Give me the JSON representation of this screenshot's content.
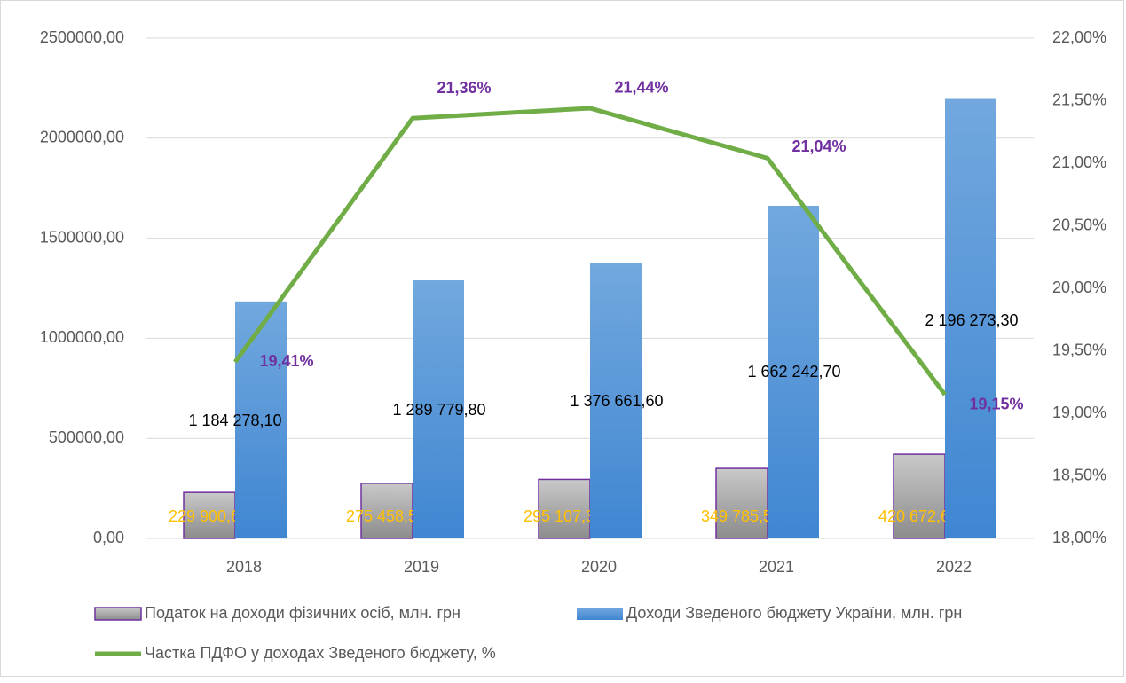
{
  "chart_data": {
    "type": "bar",
    "categories": [
      "2018",
      "2019",
      "2020",
      "2021",
      "2022"
    ],
    "series": [
      {
        "name": "Податок на доходи фізичних осіб, млн. грн",
        "color": "#a6a6a6",
        "border": "#7030a0",
        "values": [
          229900.6,
          275458.5,
          295107.3,
          349785.5,
          420672.6
        ],
        "value_labels": [
          "229 900,60",
          "275 458,50",
          "295 107,30",
          "349 785,50",
          "420 672,60"
        ],
        "label_color": "#ffc000"
      },
      {
        "name": "Доходи Зведеного бюджету України, млн. грн",
        "color": "#4a90d9",
        "values": [
          1184278.1,
          1289779.8,
          1376661.6,
          1662242.7,
          2196273.3
        ],
        "value_labels": [
          "1 184 278,10",
          "1 289 779,80",
          "1 376 661,60",
          "1 662 242,70",
          "2 196 273,30"
        ],
        "label_color": "#000000"
      },
      {
        "name": "Частка ПДФО у доходах Зведеного бюджету, %",
        "type": "line",
        "axis": "y2",
        "color": "#70ad47",
        "values": [
          19.41,
          21.36,
          21.44,
          21.04,
          19.15
        ],
        "value_labels": [
          "19,41%",
          "21,36%",
          "21,44%",
          "21,04%",
          "19,15%"
        ],
        "label_color": "#7030a0"
      }
    ],
    "ylim": [
      0,
      2500000
    ],
    "yticks": [
      {
        "value": 0,
        "label": "0,00"
      },
      {
        "value": 500000,
        "label": "500000,00"
      },
      {
        "value": 1000000,
        "label": "1000000,00"
      },
      {
        "value": 1500000,
        "label": "1500000,00"
      },
      {
        "value": 2000000,
        "label": "2000000,00"
      },
      {
        "value": 2500000,
        "label": "2500000,00"
      }
    ],
    "y2lim": [
      18,
      22
    ],
    "y2ticks": [
      {
        "value": 18,
        "label": "18,00%"
      },
      {
        "value": 18.5,
        "label": "18,50%"
      },
      {
        "value": 19,
        "label": "19,00%"
      },
      {
        "value": 19.5,
        "label": "19,50%"
      },
      {
        "value": 20,
        "label": "20,00%"
      },
      {
        "value": 20.5,
        "label": "20,50%"
      },
      {
        "value": 21,
        "label": "21,00%"
      },
      {
        "value": 21.5,
        "label": "21,50%"
      },
      {
        "value": 22,
        "label": "22,00%"
      }
    ],
    "grid": true,
    "legend": "bottom"
  }
}
